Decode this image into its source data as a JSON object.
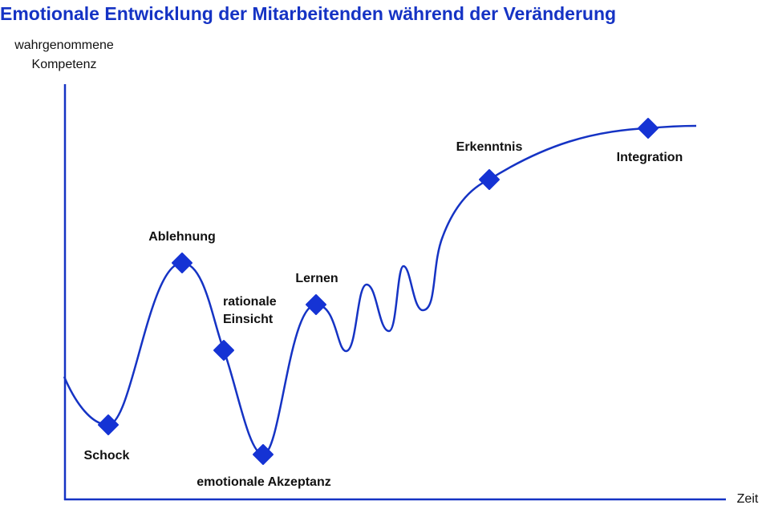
{
  "title": "Emotionale Entwicklung der Mitarbeitenden während der Veränderung",
  "y_axis_label": [
    "wahrgenommene",
    "Kompetenz"
  ],
  "x_axis_label": "Zeit",
  "nodes": [
    {
      "lines": [
        "Schock"
      ]
    },
    {
      "lines": [
        "Ablehnung"
      ]
    },
    {
      "lines": [
        "rationale",
        "Einsicht"
      ]
    },
    {
      "lines": [
        "emotionale Akzeptanz"
      ]
    },
    {
      "lines": [
        "Lernen"
      ]
    },
    {
      "lines": [
        "Erkenntnis"
      ]
    },
    {
      "lines": [
        "Integration"
      ]
    }
  ]
}
